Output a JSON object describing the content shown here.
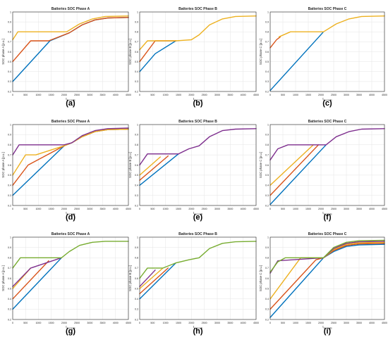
{
  "chart_data": [
    {
      "type": "line",
      "panel_label": "(a)",
      "title": "Batteries SOC Phase A",
      "xlabel": "t_seconds",
      "ylabel": "SOC phase A [p.u.]",
      "xlim": [
        0,
        4500
      ],
      "ylim": [
        0.2,
        1.0
      ],
      "xticks": [
        0,
        500,
        1000,
        1500,
        2000,
        2500,
        3000,
        3500,
        4000,
        4500
      ],
      "yticks": [
        0.2,
        0.3,
        0.4,
        0.5,
        0.6,
        0.7,
        0.8,
        0.9,
        1
      ],
      "grid": true,
      "series": [
        {
          "color": "#0072BD",
          "x": [
            0,
            1450,
            2200,
            2700,
            3200,
            3700,
            4500
          ],
          "y": [
            0.3,
            0.71,
            0.79,
            0.87,
            0.92,
            0.94,
            0.945
          ]
        },
        {
          "color": "#D95319",
          "x": [
            0,
            700,
            1400,
            2200,
            2700,
            3200,
            3700,
            4500
          ],
          "y": [
            0.5,
            0.71,
            0.71,
            0.79,
            0.87,
            0.92,
            0.94,
            0.945
          ]
        },
        {
          "color": "#EDB120",
          "x": [
            0,
            200,
            2100,
            2600,
            3100,
            3600,
            4500
          ],
          "y": [
            0.72,
            0.8,
            0.8,
            0.88,
            0.93,
            0.955,
            0.96
          ]
        }
      ]
    },
    {
      "type": "line",
      "panel_label": "(b)",
      "title": "Batteries SOC Phase B",
      "xlabel": "t_seconds",
      "ylabel": "SOC phase B [p.u.]",
      "xlim": [
        0,
        4500
      ],
      "ylim": [
        0.2,
        1.0
      ],
      "xticks": [
        0,
        500,
        1000,
        1500,
        2000,
        2500,
        3000,
        3500,
        4000,
        4500
      ],
      "yticks": [
        0.2,
        0.3,
        0.4,
        0.5,
        0.6,
        0.7,
        0.8,
        0.9,
        1
      ],
      "grid": true,
      "series": [
        {
          "color": "#0072BD",
          "x": [
            0,
            600,
            1400
          ],
          "y": [
            0.4,
            0.58,
            0.71
          ]
        },
        {
          "color": "#D95319",
          "x": [
            0,
            600,
            1400
          ],
          "y": [
            0.5,
            0.71,
            0.71
          ]
        },
        {
          "color": "#EDB120",
          "x": [
            0,
            300,
            1400,
            2000,
            2300,
            2700,
            3200,
            3700,
            4500
          ],
          "y": [
            0.62,
            0.71,
            0.71,
            0.72,
            0.77,
            0.87,
            0.93,
            0.955,
            0.96
          ]
        }
      ]
    },
    {
      "type": "line",
      "panel_label": "(c)",
      "title": "Batteries SOC Phase C",
      "xlabel": "t_seconds",
      "ylabel": "SOC phase C [p.u.]",
      "xlim": [
        0,
        4500
      ],
      "ylim": [
        0.2,
        1.0
      ],
      "xticks": [
        0,
        500,
        1000,
        1500,
        2000,
        2500,
        3000,
        3500,
        4000,
        4500
      ],
      "yticks": [
        0.2,
        0.3,
        0.4,
        0.5,
        0.6,
        0.7,
        0.8,
        0.9,
        1
      ],
      "grid": true,
      "series": [
        {
          "color": "#0072BD",
          "x": [
            0,
            2100
          ],
          "y": [
            0.21,
            0.8
          ]
        },
        {
          "color": "#D95319",
          "x": [
            0,
            250,
            400
          ],
          "y": [
            0.64,
            0.72,
            0.75
          ]
        },
        {
          "color": "#EDB120",
          "x": [
            350,
            800,
            2100,
            2600,
            3100,
            3600,
            4500
          ],
          "y": [
            0.75,
            0.8,
            0.8,
            0.88,
            0.93,
            0.955,
            0.96
          ]
        }
      ]
    },
    {
      "type": "line",
      "panel_label": "(d)",
      "title": "Batteries SOC Phase A",
      "xlabel": "t_seconds",
      "ylabel": "SOC phase A [p.u.]",
      "xlim": [
        0,
        4500
      ],
      "ylim": [
        0.2,
        1.0
      ],
      "xticks": [
        0,
        500,
        1000,
        1500,
        2000,
        2500,
        3000,
        3500,
        4000,
        4500
      ],
      "yticks": [
        0.2,
        0.3,
        0.4,
        0.5,
        0.6,
        0.7,
        0.8,
        0.9,
        1
      ],
      "grid": true,
      "series": [
        {
          "color": "#0072BD",
          "x": [
            0,
            2000,
            2300,
            2700,
            3200,
            3700,
            4500
          ],
          "y": [
            0.3,
            0.79,
            0.82,
            0.88,
            0.93,
            0.95,
            0.955
          ]
        },
        {
          "color": "#D95319",
          "x": [
            0,
            600,
            2000,
            2300,
            2700,
            3200,
            3700,
            4500
          ],
          "y": [
            0.4,
            0.6,
            0.79,
            0.82,
            0.88,
            0.93,
            0.95,
            0.955
          ]
        },
        {
          "color": "#EDB120",
          "x": [
            0,
            500,
            900,
            2000,
            2300,
            2700,
            3200,
            3700,
            4500
          ],
          "y": [
            0.5,
            0.7,
            0.7,
            0.79,
            0.82,
            0.88,
            0.93,
            0.95,
            0.955
          ]
        },
        {
          "color": "#7E2F8E",
          "x": [
            0,
            250,
            2000,
            2300,
            2700,
            3200,
            3700,
            4500
          ],
          "y": [
            0.7,
            0.8,
            0.8,
            0.82,
            0.89,
            0.94,
            0.96,
            0.965
          ]
        }
      ]
    },
    {
      "type": "line",
      "panel_label": "(e)",
      "title": "Batteries SOC Phase B",
      "xlabel": "t_seconds",
      "ylabel": "SOC phase B [p.u.]",
      "xlim": [
        0,
        4500
      ],
      "ylim": [
        0.2,
        1.0
      ],
      "xticks": [
        0,
        500,
        1000,
        1500,
        2000,
        2500,
        3000,
        3500,
        4000,
        4500
      ],
      "yticks": [
        0.2,
        0.3,
        0.4,
        0.5,
        0.6,
        0.7,
        0.8,
        0.9,
        1
      ],
      "grid": true,
      "series": [
        {
          "color": "#0072BD",
          "x": [
            0,
            1500
          ],
          "y": [
            0.4,
            0.71
          ]
        },
        {
          "color": "#D95319",
          "x": [
            0,
            1100
          ],
          "y": [
            0.45,
            0.69
          ]
        },
        {
          "color": "#EDB120",
          "x": [
            0,
            800
          ],
          "y": [
            0.5,
            0.68
          ]
        },
        {
          "color": "#7E2F8E",
          "x": [
            0,
            300,
            1500,
            1900,
            2300,
            2700,
            3200,
            3700,
            4500
          ],
          "y": [
            0.6,
            0.71,
            0.71,
            0.76,
            0.79,
            0.88,
            0.94,
            0.955,
            0.96
          ]
        }
      ]
    },
    {
      "type": "line",
      "panel_label": "(f)",
      "title": "Batteries SOC Phase C",
      "xlabel": "t_seconds",
      "ylabel": "SOC phase C [p.u.]",
      "xlim": [
        0,
        4500
      ],
      "ylim": [
        0.2,
        1.0
      ],
      "xticks": [
        0,
        500,
        1000,
        1500,
        2000,
        2500,
        3000,
        3500,
        4000,
        4500
      ],
      "yticks": [
        0.2,
        0.3,
        0.4,
        0.5,
        0.6,
        0.7,
        0.8,
        0.9,
        1
      ],
      "grid": true,
      "series": [
        {
          "color": "#0072BD",
          "x": [
            0,
            2200
          ],
          "y": [
            0.21,
            0.8
          ]
        },
        {
          "color": "#D95319",
          "x": [
            0,
            1900
          ],
          "y": [
            0.3,
            0.8
          ]
        },
        {
          "color": "#EDB120",
          "x": [
            0,
            1700
          ],
          "y": [
            0.4,
            0.8
          ]
        },
        {
          "color": "#7E2F8E",
          "x": [
            0,
            300,
            700,
            2200,
            2600,
            3100,
            3600,
            4500
          ],
          "y": [
            0.65,
            0.76,
            0.8,
            0.8,
            0.88,
            0.93,
            0.955,
            0.96
          ]
        }
      ]
    },
    {
      "type": "line",
      "panel_label": "(g)",
      "title": "Batteries SOC Phase A",
      "xlabel": "t_seconds",
      "ylabel": "SOC phase A [p.u.]",
      "xlim": [
        0,
        4500
      ],
      "ylim": [
        0.2,
        1.0
      ],
      "xticks": [
        0,
        500,
        1000,
        1500,
        2000,
        2500,
        3000,
        3500,
        4000,
        4500
      ],
      "yticks": [
        0.2,
        0.3,
        0.4,
        0.5,
        0.6,
        0.7,
        0.8,
        0.9,
        1
      ],
      "grid": true,
      "series": [
        {
          "color": "#0072BD",
          "x": [
            0,
            1900
          ],
          "y": [
            0.3,
            0.8
          ]
        },
        {
          "color": "#D95319",
          "x": [
            0,
            1400
          ],
          "y": [
            0.4,
            0.77
          ]
        },
        {
          "color": "#EDB120",
          "x": [
            0,
            700
          ],
          "y": [
            0.5,
            0.7
          ]
        },
        {
          "color": "#7E2F8E",
          "x": [
            0,
            700,
            1900
          ],
          "y": [
            0.52,
            0.7,
            0.8
          ]
        },
        {
          "color": "#77AC30",
          "x": [
            0,
            300,
            1900,
            2200,
            2600,
            3100,
            3600,
            4500
          ],
          "y": [
            0.7,
            0.8,
            0.8,
            0.86,
            0.92,
            0.95,
            0.96,
            0.96
          ]
        }
      ]
    },
    {
      "type": "line",
      "panel_label": "(h)",
      "title": "Batteries SOC Phase B",
      "xlabel": "t_seconds",
      "ylabel": "SOC phase B [p.u.]",
      "xlim": [
        0,
        4500
      ],
      "ylim": [
        0.2,
        1.0
      ],
      "xticks": [
        0,
        500,
        1000,
        1500,
        2000,
        2500,
        3000,
        3500,
        4000,
        4500
      ],
      "yticks": [
        0.2,
        0.3,
        0.4,
        0.5,
        0.6,
        0.7,
        0.8,
        0.9,
        1
      ],
      "grid": true,
      "series": [
        {
          "color": "#0072BD",
          "x": [
            0,
            1400
          ],
          "y": [
            0.4,
            0.75
          ]
        },
        {
          "color": "#D95319",
          "x": [
            0,
            1100
          ],
          "y": [
            0.45,
            0.7
          ]
        },
        {
          "color": "#EDB120",
          "x": [
            0,
            900
          ],
          "y": [
            0.5,
            0.7
          ]
        },
        {
          "color": "#7E2F8E",
          "x": [
            0,
            600
          ],
          "y": [
            0.52,
            0.68
          ]
        },
        {
          "color": "#77AC30",
          "x": [
            0,
            300,
            900,
            1400,
            1900,
            2300,
            2700,
            3200,
            3700,
            4500
          ],
          "y": [
            0.6,
            0.7,
            0.7,
            0.75,
            0.78,
            0.8,
            0.89,
            0.94,
            0.955,
            0.96
          ]
        }
      ]
    },
    {
      "type": "line",
      "panel_label": "(i)",
      "title": "Batteries SOC Phase C",
      "xlabel": "t_seconds",
      "ylabel": "SOC phase C [p.u.]",
      "xlim": [
        0,
        4500
      ],
      "ylim": [
        0.2,
        1.0
      ],
      "xticks": [
        0,
        500,
        1000,
        1500,
        2000,
        2500,
        3000,
        3500,
        4000,
        4500
      ],
      "yticks": [
        0.2,
        0.3,
        0.4,
        0.5,
        0.6,
        0.7,
        0.8,
        0.9,
        1
      ],
      "grid": true,
      "series": [
        {
          "color": "#0072BD",
          "x": [
            0,
            2100,
            2500,
            3000,
            3500,
            4500
          ],
          "y": [
            0.22,
            0.8,
            0.86,
            0.91,
            0.925,
            0.93
          ]
        },
        {
          "color": "#D95319",
          "x": [
            0,
            1800,
            2100,
            2500,
            3000,
            3500,
            4500
          ],
          "y": [
            0.3,
            0.78,
            0.8,
            0.87,
            0.92,
            0.935,
            0.94
          ]
        },
        {
          "color": "#EDB120",
          "x": [
            0,
            1200,
            2100,
            2500,
            3000,
            3500,
            4500
          ],
          "y": [
            0.4,
            0.8,
            0.8,
            0.88,
            0.93,
            0.945,
            0.95
          ]
        },
        {
          "color": "#7E2F8E",
          "x": [
            0,
            300,
            2100,
            2500,
            3000,
            3500,
            4500
          ],
          "y": [
            0.65,
            0.77,
            0.8,
            0.89,
            0.94,
            0.955,
            0.96
          ]
        },
        {
          "color": "#77AC30",
          "x": [
            0,
            300,
            600,
            2100,
            2500,
            3000,
            3500,
            4500
          ],
          "y": [
            0.66,
            0.76,
            0.8,
            0.8,
            0.9,
            0.95,
            0.965,
            0.97
          ]
        }
      ]
    }
  ]
}
